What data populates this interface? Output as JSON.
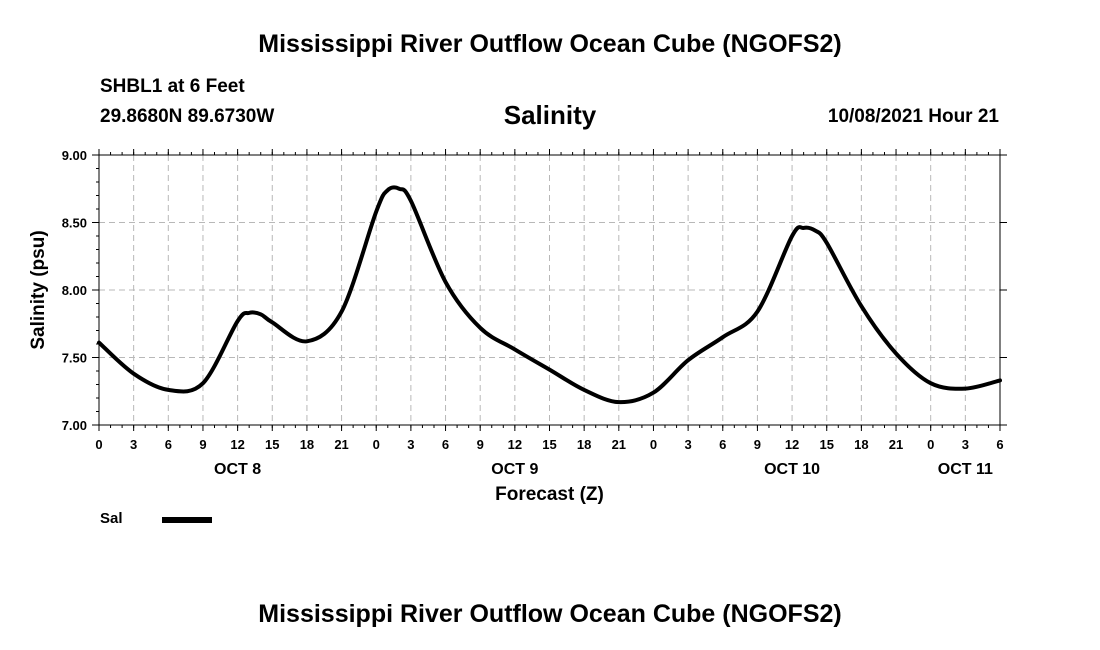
{
  "header": {
    "title": "Mississippi River Outflow Ocean Cube (NGOFS2)",
    "station": "SHBL1 at 6 Feet",
    "coords": "29.8680N  89.6730W",
    "variable": "Salinity",
    "datetime": "10/08/2021 Hour 21"
  },
  "footer": {
    "title": "Mississippi River Outflow Ocean Cube (NGOFS2)"
  },
  "legend": {
    "label": "Sal",
    "color": "#000000"
  },
  "chart_data": {
    "type": "line",
    "title": "Salinity",
    "xlabel": "Forecast (Z)",
    "ylabel": "Salinity (psu)",
    "xlim": [
      0,
      78
    ],
    "ylim": [
      7.0,
      9.0
    ],
    "y_ticks": [
      "7.00",
      "7.50",
      "8.00",
      "8.50",
      "9.00"
    ],
    "x_tick_labels": [
      "0",
      "3",
      "6",
      "9",
      "12",
      "15",
      "18",
      "21",
      "0",
      "3",
      "6",
      "9",
      "12",
      "15",
      "18",
      "21",
      "0",
      "3",
      "6",
      "9",
      "12",
      "15",
      "18",
      "21",
      "0",
      "3",
      "6"
    ],
    "date_labels": [
      {
        "label": "OCT 8",
        "hour": 12
      },
      {
        "label": "OCT 9",
        "hour": 36
      },
      {
        "label": "OCT 10",
        "hour": 60
      },
      {
        "label": "OCT 11",
        "hour": 75
      }
    ],
    "grid": true,
    "series": [
      {
        "name": "Sal",
        "x": [
          0,
          3,
          6,
          9,
          12,
          13,
          14,
          15,
          18,
          21,
          24,
          25,
          26,
          27,
          30,
          33,
          36,
          39,
          42,
          45,
          48,
          51,
          54,
          57,
          60,
          61,
          62,
          63,
          66,
          69,
          72,
          75,
          78
        ],
        "values": [
          7.61,
          7.38,
          7.26,
          7.31,
          7.77,
          7.83,
          7.82,
          7.76,
          7.62,
          7.84,
          8.58,
          8.74,
          8.75,
          8.66,
          8.06,
          7.72,
          7.56,
          7.41,
          7.26,
          7.17,
          7.24,
          7.48,
          7.65,
          7.84,
          8.4,
          8.46,
          8.44,
          8.35,
          7.88,
          7.53,
          7.31,
          7.27,
          7.33
        ]
      }
    ]
  }
}
